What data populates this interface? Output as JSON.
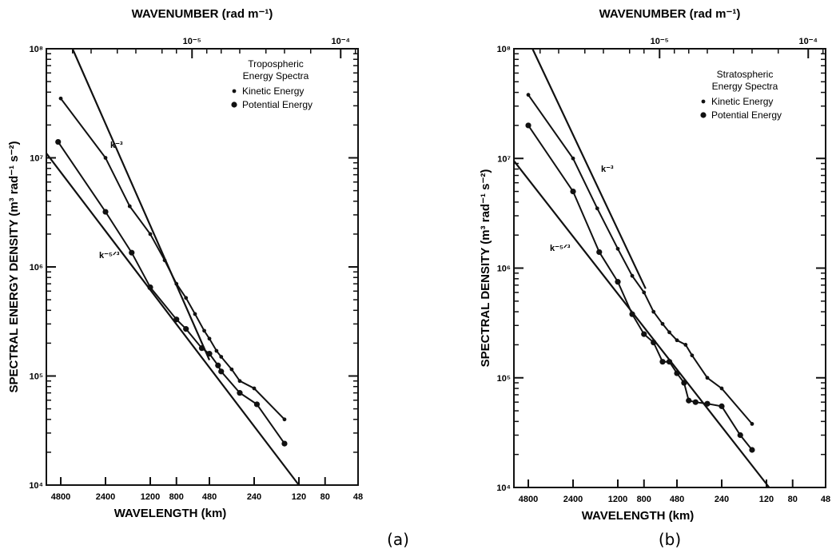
{
  "figure": {
    "panel_labels": [
      "(a)",
      "(b)"
    ]
  },
  "chart_data": [
    {
      "type": "line",
      "panel": "(a)",
      "top_axis_label": "WAVENUMBER (rad m⁻¹)",
      "top_ticks": [
        "10⁻⁵",
        "10⁻⁴"
      ],
      "xlabel": "WAVELENGTH (km)",
      "x_ticks": [
        "4800",
        "2400",
        "1200",
        "800",
        "480",
        "240",
        "120",
        "80",
        "48"
      ],
      "ylabel": "SPECTRAL ENERGY DENSITY (m³ rad⁻¹ s⁻²)",
      "y_ticks": [
        "10⁸",
        "10⁷",
        "10⁶",
        "10⁵",
        "10⁴"
      ],
      "x_scale": "log-reversed",
      "y_scale": "log",
      "xlim_km": [
        6000,
        48
      ],
      "ylim": [
        10000,
        100000000
      ],
      "legend": {
        "title": "Tropospheric\nEnergy Spectra",
        "entries": [
          "Kinetic Energy",
          "Potential Energy"
        ],
        "position": "top-right"
      },
      "series": [
        {
          "name": "Kinetic Energy",
          "marker": "small-dot",
          "x": [
            4800,
            2400,
            1650,
            1200,
            960,
            800,
            690,
            600,
            520,
            480,
            430,
            400,
            340,
            300,
            240,
            150
          ],
          "y": [
            35000000,
            10000000,
            3600000,
            2000000,
            1150000,
            700000,
            520000,
            370000,
            260000,
            220000,
            170000,
            150000,
            115000,
            90000,
            77000,
            40000
          ]
        },
        {
          "name": "Potential Energy",
          "marker": "large-dot",
          "x": [
            5000,
            2400,
            1600,
            1200,
            800,
            690,
            540,
            480,
            420,
            400,
            300,
            230,
            150
          ],
          "y": [
            14000000,
            3200000,
            1350000,
            650000,
            330000,
            270000,
            180000,
            160000,
            125000,
            110000,
            70000,
            55000,
            24000
          ]
        }
      ],
      "reference_lines": [
        {
          "label": "k⁻³",
          "x": [
            4000,
            480
          ],
          "y": [
            100000000,
            140000
          ]
        },
        {
          "label": "k⁻⁵ᐟ³",
          "x": [
            6000,
            120
          ],
          "y": [
            11000000,
            10000
          ]
        }
      ]
    },
    {
      "type": "line",
      "panel": "(b)",
      "top_axis_label": "WAVENUMBER (rad m⁻¹)",
      "top_ticks": [
        "10⁻⁵",
        "10⁻⁴"
      ],
      "xlabel": "WAVELENGTH (km)",
      "x_ticks": [
        "4800",
        "2400",
        "1200",
        "800",
        "480",
        "240",
        "120",
        "80",
        "48"
      ],
      "ylabel": "SPECTRAL DENSITY (m³ rad⁻¹ s⁻²)",
      "y_ticks": [
        "10⁸",
        "10⁷",
        "10⁶",
        "10⁵",
        "10⁴"
      ],
      "x_scale": "log-reversed",
      "y_scale": "log",
      "xlim_km": [
        6000,
        48
      ],
      "ylim": [
        10000,
        100000000
      ],
      "legend": {
        "title": "Stratospheric\nEnergy Spectra",
        "entries": [
          "Kinetic Energy",
          "Potential Energy"
        ],
        "position": "top-right"
      },
      "series": [
        {
          "name": "Kinetic Energy",
          "marker": "small-dot",
          "x": [
            4800,
            2400,
            1650,
            1200,
            960,
            800,
            690,
            600,
            540,
            480,
            420,
            380,
            300,
            240,
            150
          ],
          "y": [
            38000000,
            10000000,
            3500000,
            1500000,
            850000,
            600000,
            400000,
            310000,
            260000,
            220000,
            200000,
            160000,
            100000,
            80000,
            38000
          ]
        },
        {
          "name": "Potential Energy",
          "marker": "large-dot",
          "x": [
            4800,
            2400,
            1600,
            1200,
            960,
            800,
            690,
            600,
            540,
            480,
            430,
            400,
            360,
            300,
            240,
            180,
            150
          ],
          "y": [
            20000000,
            5000000,
            1400000,
            750000,
            380000,
            250000,
            210000,
            140000,
            140000,
            110000,
            90000,
            62000,
            60000,
            58000,
            55000,
            30000,
            22000
          ]
        }
      ],
      "reference_lines": [
        {
          "label": "k⁻³",
          "x": [
            4500,
            780
          ],
          "y": [
            100000000,
            650000
          ]
        },
        {
          "label": "k⁻⁵ᐟ³",
          "x": [
            6000,
            115
          ],
          "y": [
            9500000,
            10000
          ]
        }
      ]
    }
  ]
}
